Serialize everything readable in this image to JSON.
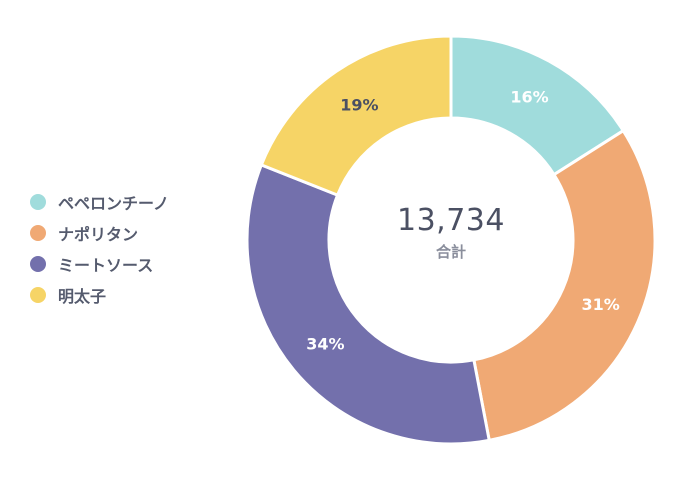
{
  "chart_data": {
    "type": "pie",
    "donut": true,
    "categories": [
      "ペペロンチーノ",
      "ナポリタン",
      "ミートソース",
      "明太子"
    ],
    "values": [
      16,
      31,
      34,
      19
    ],
    "labels": [
      "16%",
      "31%",
      "34%",
      "19%"
    ],
    "colors": [
      "#a0dcdc",
      "#f0a974",
      "#7370ac",
      "#f6d466"
    ],
    "label_colors": [
      "#ffffff",
      "#ffffff",
      "#ffffff",
      "#4b5063"
    ],
    "legend_position": "left",
    "center_value": "13,734",
    "center_label": "合計"
  }
}
